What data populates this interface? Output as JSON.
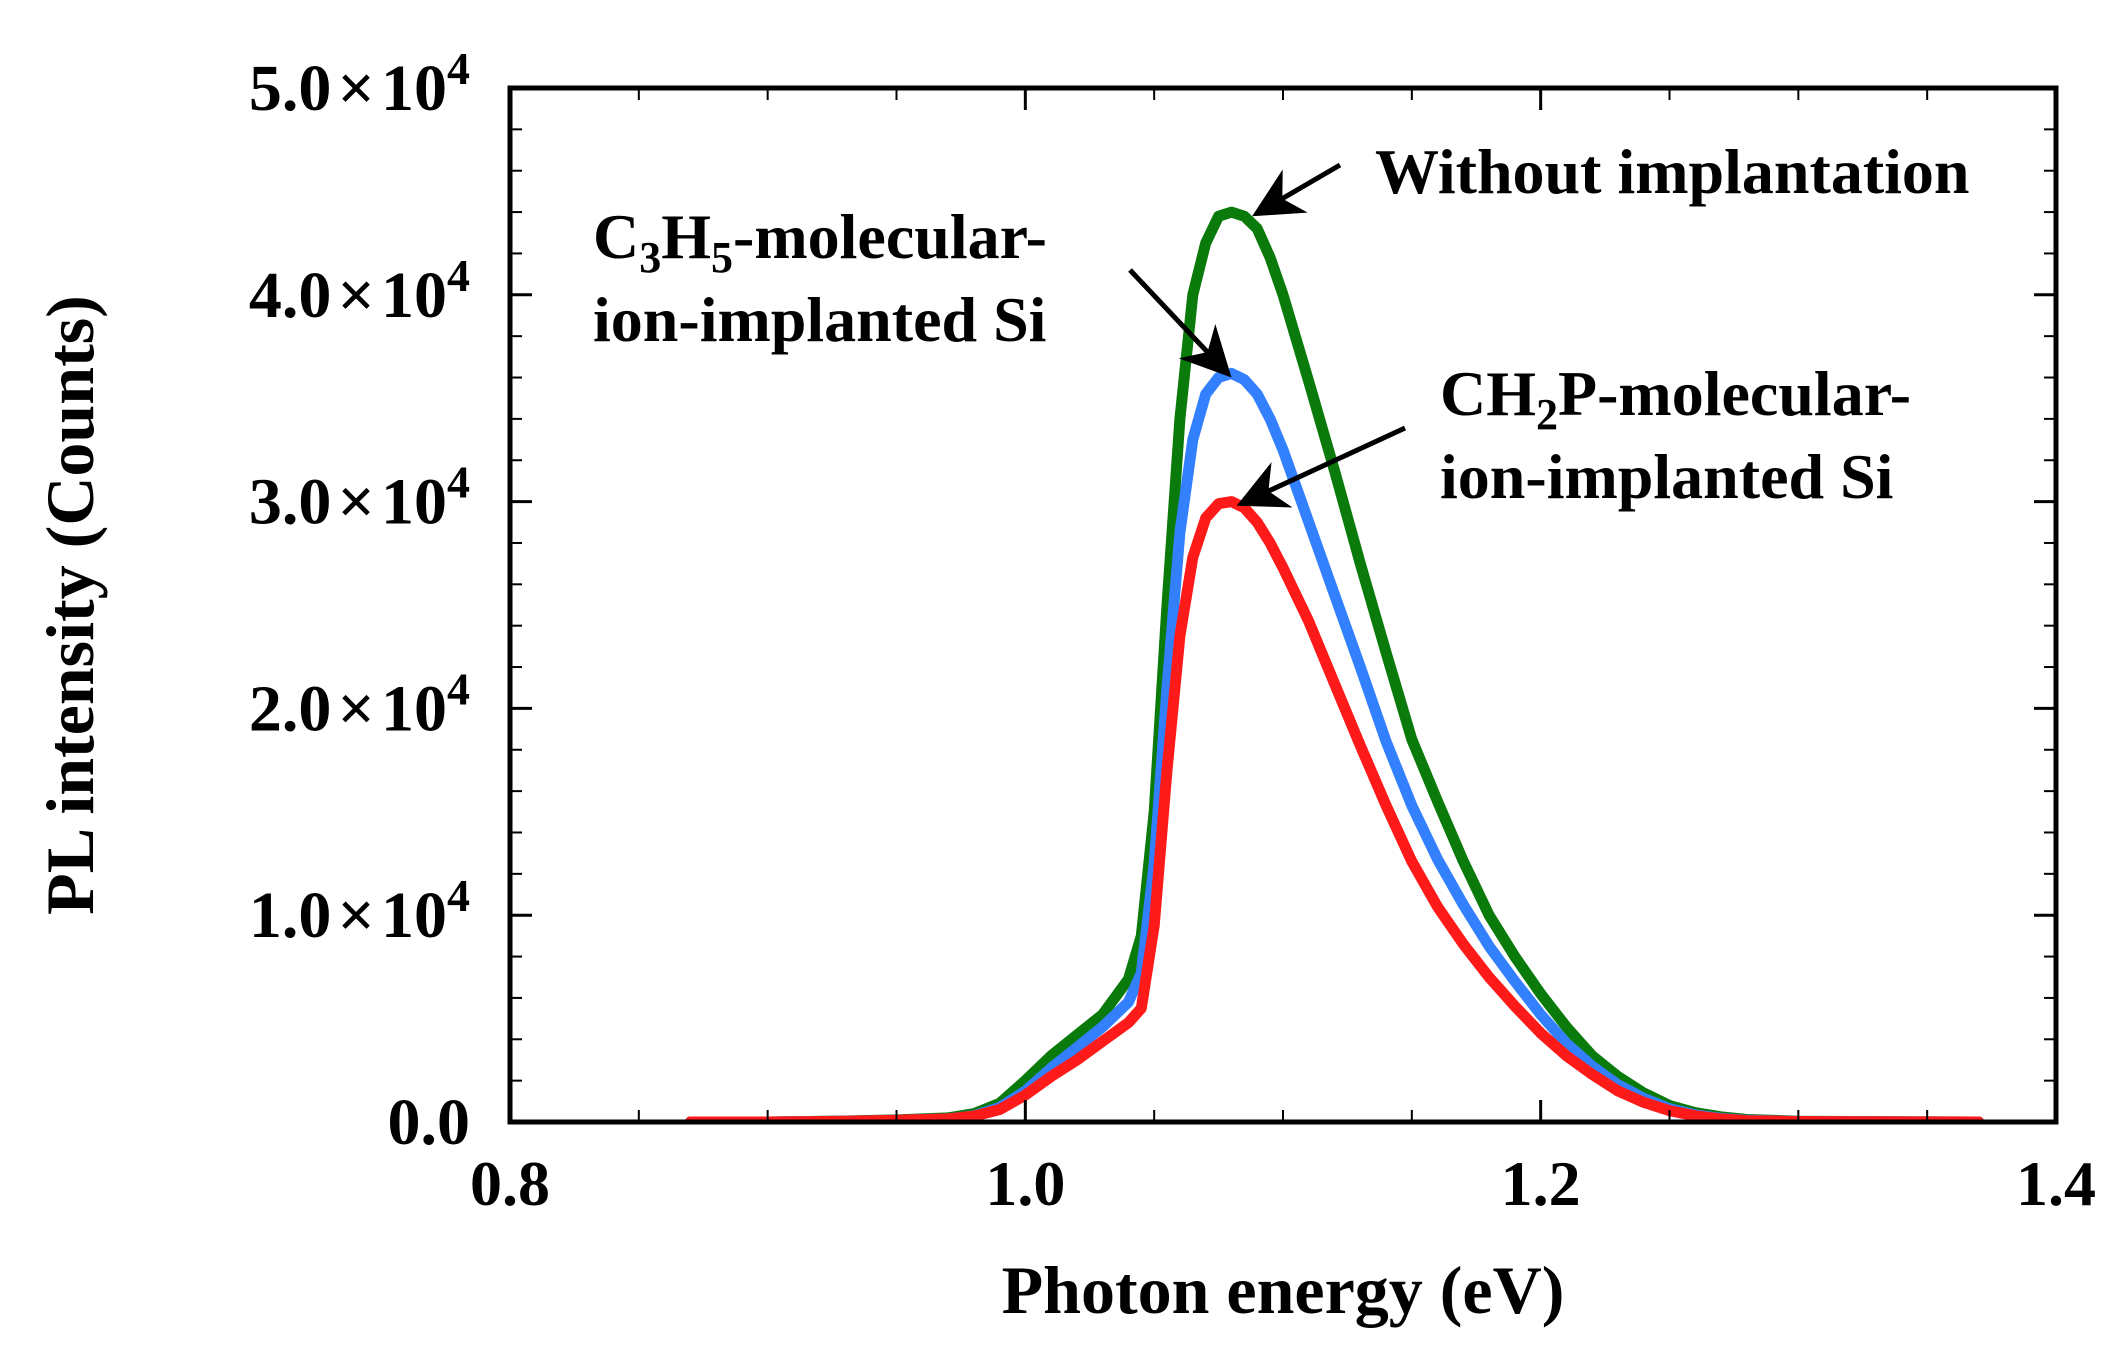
{
  "chart_data": {
    "type": "line",
    "xlabel": "Photon energy (eV)",
    "ylabel": "PL intensity (Counts)",
    "xlim": [
      0.8,
      1.4
    ],
    "ylim": [
      0,
      50000
    ],
    "grid": false,
    "x_ticks": [
      {
        "value": 0.8,
        "label": "0.8"
      },
      {
        "value": 1.0,
        "label": "1.0"
      },
      {
        "value": 1.2,
        "label": "1.2"
      },
      {
        "value": 1.4,
        "label": "1.4"
      }
    ],
    "y_ticks": [
      {
        "value": 0,
        "mantissa": "0.0",
        "times": "",
        "exp_base": "",
        "exp": ""
      },
      {
        "value": 10000,
        "mantissa": "1.0",
        "times": "×",
        "exp_base": "10",
        "exp": "4"
      },
      {
        "value": 20000,
        "mantissa": "2.0",
        "times": "×",
        "exp_base": "10",
        "exp": "4"
      },
      {
        "value": 30000,
        "mantissa": "3.0",
        "times": "×",
        "exp_base": "10",
        "exp": "4"
      },
      {
        "value": 40000,
        "mantissa": "4.0",
        "times": "×",
        "exp_base": "10",
        "exp": "4"
      },
      {
        "value": 50000,
        "mantissa": "5.0",
        "times": "×",
        "exp_base": "10",
        "exp": "4"
      }
    ],
    "x": [
      0.87,
      0.9,
      0.93,
      0.95,
      0.97,
      0.98,
      0.99,
      1.0,
      1.01,
      1.02,
      1.03,
      1.04,
      1.045,
      1.05,
      1.055,
      1.06,
      1.065,
      1.07,
      1.075,
      1.08,
      1.085,
      1.09,
      1.095,
      1.1,
      1.11,
      1.12,
      1.13,
      1.14,
      1.15,
      1.16,
      1.17,
      1.18,
      1.19,
      1.2,
      1.21,
      1.22,
      1.23,
      1.24,
      1.25,
      1.26,
      1.27,
      1.28,
      1.3,
      1.33,
      1.37
    ],
    "series": [
      {
        "name": "Without implantation",
        "color": "#0a7a0a",
        "values": [
          0,
          0,
          50,
          100,
          200,
          400,
          900,
          2000,
          3200,
          4200,
          5200,
          6900,
          9000,
          15000,
          25000,
          34000,
          40000,
          42500,
          43800,
          44000,
          43800,
          43200,
          41800,
          40000,
          35800,
          31500,
          27000,
          22700,
          18500,
          15500,
          12600,
          10000,
          8000,
          6200,
          4600,
          3200,
          2200,
          1400,
          800,
          450,
          250,
          120,
          40,
          20,
          0
        ]
      },
      {
        "name": "C3H5-molecular-ion-implanted Si",
        "color": "#3380ff",
        "values": [
          0,
          0,
          40,
          80,
          150,
          300,
          700,
          1500,
          2600,
          3600,
          4600,
          5800,
          7200,
          12500,
          21000,
          28500,
          33000,
          35200,
          36000,
          36200,
          35900,
          35200,
          34000,
          32500,
          29000,
          25500,
          22000,
          18400,
          15300,
          12700,
          10500,
          8500,
          6800,
          5200,
          3800,
          2700,
          1800,
          1150,
          650,
          350,
          180,
          80,
          30,
          10,
          0
        ]
      },
      {
        "name": "CH2P-molecular-ion-implanted Si",
        "color": "#ff1a1a",
        "values": [
          0,
          0,
          40,
          80,
          150,
          280,
          600,
          1300,
          2200,
          3000,
          3900,
          4800,
          5500,
          9500,
          17000,
          23500,
          27300,
          29200,
          29900,
          30000,
          29700,
          29000,
          28000,
          26800,
          24200,
          21200,
          18200,
          15300,
          12600,
          10400,
          8600,
          7000,
          5600,
          4300,
          3200,
          2300,
          1500,
          950,
          550,
          300,
          150,
          70,
          25,
          10,
          0
        ]
      }
    ],
    "annotations": [
      {
        "lines": [
          {
            "segments": [
              {
                "text": "Without implantation"
              }
            ]
          }
        ],
        "target_series": 0,
        "target_x": 1.088,
        "target_y": 43800
      },
      {
        "lines": [
          {
            "segments": [
              {
                "text": "C"
              },
              {
                "text": "3",
                "sub": true
              },
              {
                "text": "H"
              },
              {
                "text": "5",
                "sub": true
              },
              {
                "text": "-molecular-"
              }
            ]
          },
          {
            "segments": [
              {
                "text": "ion-implanted Si"
              }
            ]
          }
        ],
        "target_series": 1,
        "target_x": 1.08,
        "target_y": 36000
      },
      {
        "lines": [
          {
            "segments": [
              {
                "text": "CH"
              },
              {
                "text": "2",
                "sub": true
              },
              {
                "text": "P-molecular-"
              }
            ]
          },
          {
            "segments": [
              {
                "text": "ion-implanted Si"
              }
            ]
          }
        ],
        "target_series": 2,
        "target_x": 1.082,
        "target_y": 29800
      }
    ]
  }
}
